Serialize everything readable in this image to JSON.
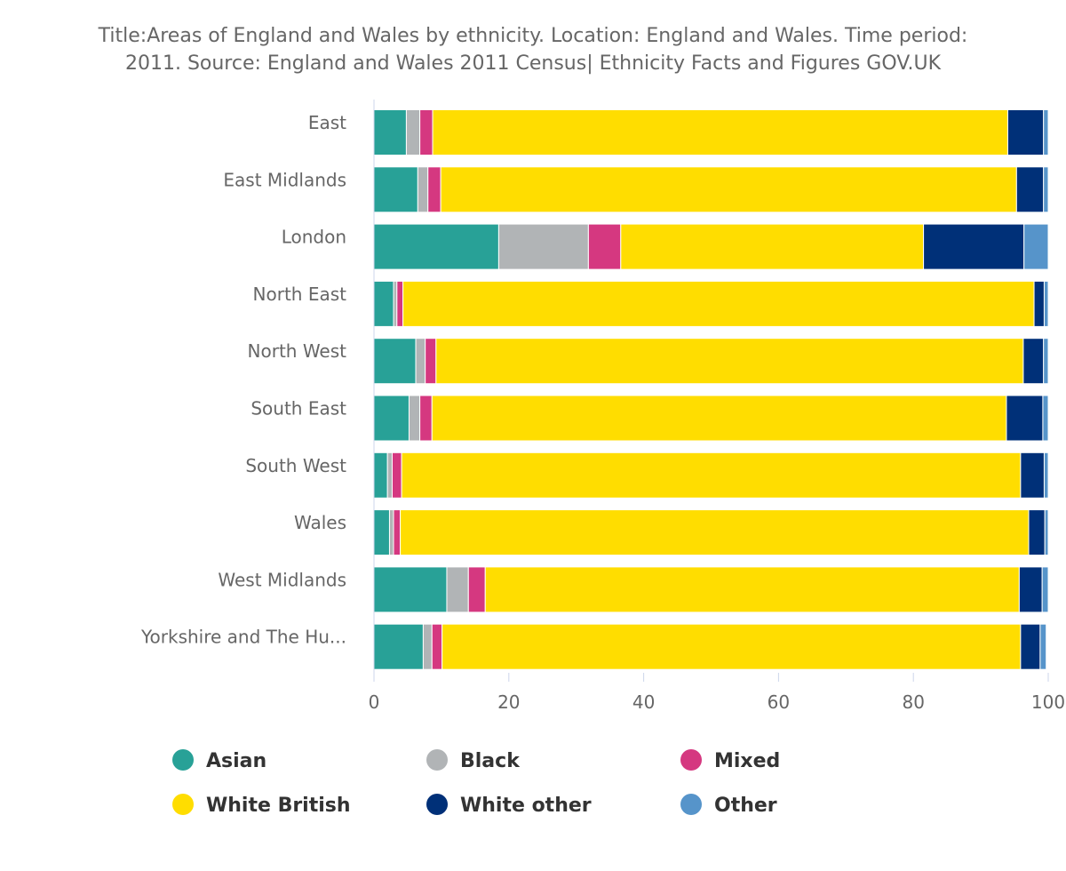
{
  "chart_data": {
    "type": "bar",
    "orientation": "horizontal",
    "stacked": true,
    "title_lines": [
      "Title:Areas of England and Wales by ethnicity. Location: England and Wales. Time period:",
      "2011. Source: England and Wales 2011 Census| Ethnicity Facts and Figures GOV.UK"
    ],
    "categories": [
      "East",
      "East Midlands",
      "London",
      "North East",
      "North West",
      "South East",
      "South West",
      "Wales",
      "West Midlands",
      "Yorkshire and The Hu..."
    ],
    "series": [
      {
        "name": "Asian",
        "color": "#28a197",
        "values": [
          4.8,
          6.5,
          18.5,
          2.9,
          6.2,
          5.2,
          2.0,
          2.3,
          10.8,
          7.3
        ]
      },
      {
        "name": "Black",
        "color": "#b1b4b6",
        "values": [
          2.0,
          1.5,
          13.3,
          0.5,
          1.4,
          1.6,
          0.7,
          0.6,
          3.2,
          1.3
        ]
      },
      {
        "name": "Mixed",
        "color": "#d53880",
        "values": [
          1.9,
          1.9,
          4.8,
          0.9,
          1.6,
          1.8,
          1.4,
          1.0,
          2.5,
          1.5
        ]
      },
      {
        "name": "White British",
        "color": "#ffdd00",
        "values": [
          85.3,
          85.4,
          44.9,
          93.6,
          87.1,
          85.2,
          91.8,
          93.2,
          79.2,
          85.8
        ]
      },
      {
        "name": "White other",
        "color": "#003078",
        "values": [
          5.3,
          4.0,
          14.9,
          1.5,
          3.0,
          5.4,
          3.5,
          2.4,
          3.4,
          2.9
        ]
      },
      {
        "name": "Other",
        "color": "#5694ca",
        "values": [
          0.7,
          0.7,
          3.6,
          0.6,
          0.7,
          0.8,
          0.6,
          0.5,
          0.9,
          0.9
        ]
      }
    ],
    "xlim": [
      0,
      100
    ],
    "xticks": [
      0,
      20,
      40,
      60,
      80,
      100
    ],
    "xtick_labels": [
      "0",
      "20",
      "40",
      "60",
      "80",
      "100"
    ],
    "xlabel": "",
    "ylabel": "",
    "grid": false,
    "legend_position": "bottom"
  }
}
